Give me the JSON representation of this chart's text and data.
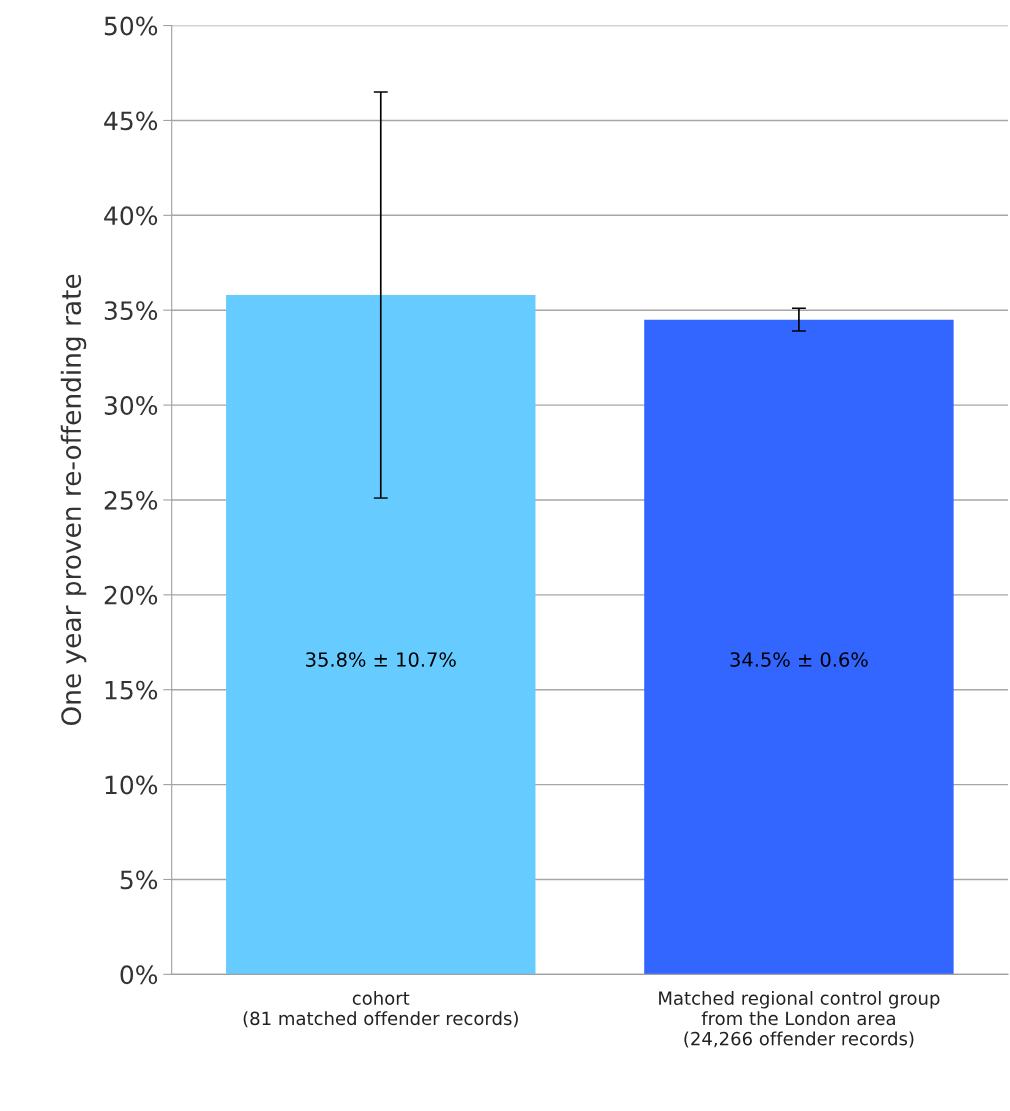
{
  "chart_data": {
    "type": "bar",
    "ylabel": "One year proven re-offending rate",
    "categories": [
      "cohort\n(81 matched offender records)",
      "Matched regional control group\nfrom the London area\n(24,266 offender records)"
    ],
    "values": [
      35.8,
      34.5
    ],
    "colors": [
      "#66ccff",
      "#3366ff"
    ],
    "errors": [
      10.7,
      0.6
    ],
    "value_labels": [
      "35.8% ± 10.7%",
      "34.5% ± 0.6%"
    ],
    "ylim": [
      0,
      50
    ],
    "yticks": [
      {
        "value": 0,
        "label": "0%"
      },
      {
        "value": 5,
        "label": "5%"
      },
      {
        "value": 10,
        "label": "10%"
      },
      {
        "value": 15,
        "label": "15%"
      },
      {
        "value": 20,
        "label": "20%"
      },
      {
        "value": 25,
        "label": "25%"
      },
      {
        "value": 30,
        "label": "30%"
      },
      {
        "value": 35,
        "label": "35%"
      },
      {
        "value": 40,
        "label": "40%"
      },
      {
        "value": 45,
        "label": "45%"
      },
      {
        "value": 50,
        "label": "50%"
      }
    ],
    "grid": "y",
    "legend": false
  }
}
